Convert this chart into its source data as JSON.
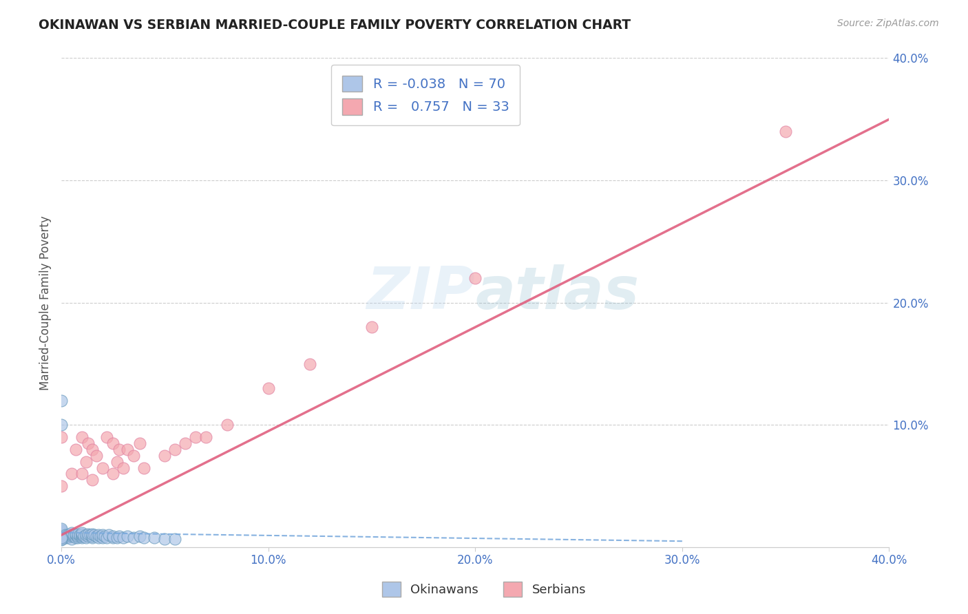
{
  "title": "OKINAWAN VS SERBIAN MARRIED-COUPLE FAMILY POVERTY CORRELATION CHART",
  "source": "Source: ZipAtlas.com",
  "ylabel": "Married-Couple Family Poverty",
  "xlabel": "",
  "xlim": [
    0.0,
    0.4
  ],
  "ylim": [
    0.0,
    0.4
  ],
  "xtick_labels": [
    "0.0%",
    "10.0%",
    "20.0%",
    "30.0%",
    "40.0%"
  ],
  "xtick_positions": [
    0.0,
    0.1,
    0.2,
    0.3,
    0.4
  ],
  "ytick_labels": [
    "10.0%",
    "20.0%",
    "30.0%",
    "40.0%"
  ],
  "ytick_positions": [
    0.1,
    0.2,
    0.3,
    0.4
  ],
  "okinawan_color": "#aec6e8",
  "serbian_color": "#f4a8b0",
  "okinawan_edge_color": "#6699bb",
  "serbian_edge_color": "#e080a0",
  "okinawan_R": -0.038,
  "okinawan_N": 70,
  "serbian_R": 0.757,
  "serbian_N": 33,
  "legend_entries": [
    "Okinawans",
    "Serbians"
  ],
  "watermark": "ZIPatlas",
  "background_color": "#ffffff",
  "grid_color": "#cccccc",
  "okinawan_line_color": "#7aaadd",
  "serbian_line_color": "#e06080",
  "ok_x": [
    0.0,
    0.0,
    0.0,
    0.0,
    0.0,
    0.0,
    0.0,
    0.0,
    0.0,
    0.0,
    0.002,
    0.002,
    0.003,
    0.003,
    0.003,
    0.004,
    0.004,
    0.005,
    0.005,
    0.005,
    0.005,
    0.006,
    0.006,
    0.007,
    0.007,
    0.007,
    0.008,
    0.008,
    0.008,
    0.009,
    0.009,
    0.01,
    0.01,
    0.01,
    0.01,
    0.01,
    0.011,
    0.012,
    0.012,
    0.013,
    0.013,
    0.014,
    0.015,
    0.015,
    0.015,
    0.016,
    0.017,
    0.018,
    0.018,
    0.019,
    0.02,
    0.02,
    0.021,
    0.022,
    0.023,
    0.025,
    0.025,
    0.027,
    0.028,
    0.03,
    0.032,
    0.035,
    0.038,
    0.04,
    0.045,
    0.05,
    0.055,
    0.0,
    0.0,
    0.0
  ],
  "ok_y": [
    0.12,
    0.1,
    0.008,
    0.009,
    0.01,
    0.011,
    0.012,
    0.013,
    0.014,
    0.015,
    0.008,
    0.01,
    0.008,
    0.009,
    0.01,
    0.009,
    0.011,
    0.007,
    0.009,
    0.01,
    0.012,
    0.009,
    0.01,
    0.008,
    0.01,
    0.011,
    0.008,
    0.009,
    0.011,
    0.009,
    0.01,
    0.008,
    0.009,
    0.01,
    0.011,
    0.012,
    0.009,
    0.008,
    0.01,
    0.009,
    0.011,
    0.01,
    0.008,
    0.009,
    0.011,
    0.01,
    0.009,
    0.008,
    0.01,
    0.009,
    0.008,
    0.01,
    0.009,
    0.008,
    0.01,
    0.008,
    0.009,
    0.008,
    0.009,
    0.008,
    0.009,
    0.008,
    0.009,
    0.008,
    0.008,
    0.007,
    0.007,
    0.006,
    0.007,
    0.008
  ],
  "ser_x": [
    0.0,
    0.0,
    0.005,
    0.007,
    0.01,
    0.01,
    0.012,
    0.013,
    0.015,
    0.015,
    0.017,
    0.02,
    0.022,
    0.025,
    0.025,
    0.027,
    0.028,
    0.03,
    0.032,
    0.035,
    0.038,
    0.04,
    0.05,
    0.055,
    0.06,
    0.065,
    0.07,
    0.08,
    0.1,
    0.12,
    0.15,
    0.2,
    0.35
  ],
  "ser_y": [
    0.05,
    0.09,
    0.06,
    0.08,
    0.06,
    0.09,
    0.07,
    0.085,
    0.055,
    0.08,
    0.075,
    0.065,
    0.09,
    0.06,
    0.085,
    0.07,
    0.08,
    0.065,
    0.08,
    0.075,
    0.085,
    0.065,
    0.075,
    0.08,
    0.085,
    0.09,
    0.09,
    0.1,
    0.13,
    0.15,
    0.18,
    0.22,
    0.34
  ],
  "ok_line_x": [
    0.0,
    0.3
  ],
  "ok_line_y": [
    0.012,
    0.005
  ],
  "ser_line_x": [
    0.0,
    0.4
  ],
  "ser_line_y": [
    0.01,
    0.35
  ]
}
